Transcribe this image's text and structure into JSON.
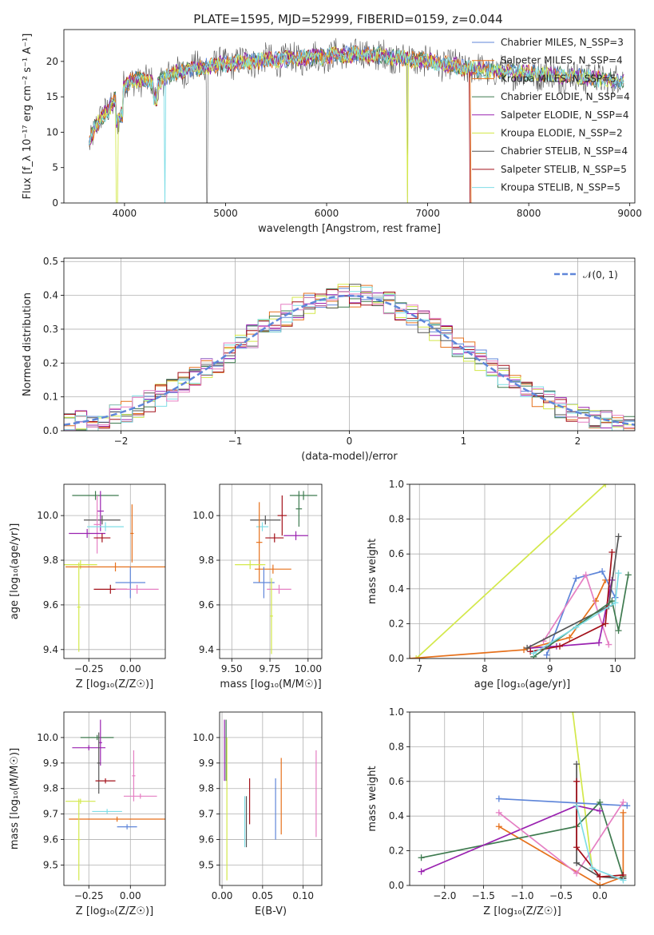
{
  "title": "PLATE=1595, MJD=52999, FIBERID=0159, z=0.044",
  "colors": {
    "chabrier_miles": "#5f86d9",
    "salpeter_miles": "#e6711c",
    "kroupa_miles": "#e6711c",
    "chabrier_elodie": "#3e7a4f",
    "salpeter_elodie": "#9a22b0",
    "kroupa_elodie": "#d3e84a",
    "chabrier_stelib": "#555555",
    "salpeter_stelib": "#a3111a",
    "kroupa_stelib": "#7fdde6",
    "pink": "#e57fc3",
    "gauss": "#5f86d9",
    "grid": "#b0b0b0"
  },
  "chart_data": [
    {
      "id": "spectrum",
      "type": "line",
      "title": "PLATE=1595, MJD=52999, FIBERID=0159, z=0.044",
      "xlabel": "wavelength [Angstrom, rest frame]",
      "ylabel": "Flux [f_λ 10⁻¹⁷ erg cm⁻² s⁻¹ A⁻¹]",
      "xlim": [
        3400,
        9050
      ],
      "ylim": [
        0,
        24.5
      ],
      "xticks": [
        "4000",
        "5000",
        "6000",
        "7000",
        "8000",
        "9000"
      ],
      "yticks": [
        "0",
        "5",
        "10",
        "15",
        "20"
      ],
      "legend_position": "right",
      "legend": [
        "Chabrier MILES, N_SSP=3",
        "Salpeter MILES, N_SSP=4",
        "Kroupa MILES, N_SSP=5",
        "Chabrier ELODIE, N_SSP=4",
        "Salpeter ELODIE, N_SSP=4",
        "Kroupa ELODIE, N_SSP=2",
        "Chabrier STELIB, N_SSP=4",
        "Salpeter STELIB, N_SSP=5",
        "Kroupa STELIB, N_SSP=5"
      ],
      "continuum": [
        [
          3650,
          8.5
        ],
        [
          3700,
          10.5
        ],
        [
          3800,
          12.5
        ],
        [
          3900,
          14.5
        ],
        [
          4000,
          16.5
        ],
        [
          4100,
          17.5
        ],
        [
          4300,
          16.8
        ],
        [
          4500,
          18.5
        ],
        [
          4700,
          19.0
        ],
        [
          4900,
          19.5
        ],
        [
          5200,
          20.0
        ],
        [
          5600,
          20.3
        ],
        [
          6000,
          20.8
        ],
        [
          6300,
          21.0
        ],
        [
          6600,
          20.7
        ],
        [
          7000,
          20.0
        ],
        [
          7500,
          18.8
        ],
        [
          8000,
          18.3
        ],
        [
          8500,
          17.8
        ],
        [
          8950,
          17.2
        ]
      ]
    },
    {
      "id": "residual-histogram",
      "type": "histogram",
      "xlabel": "(data-model)/error",
      "ylabel": "Normed distribution",
      "xlim": [
        -2.5,
        2.5
      ],
      "ylim": [
        0,
        0.51
      ],
      "xticks": [
        "−2",
        "−1",
        "0",
        "1",
        "2"
      ],
      "yticks": [
        "0.0",
        "0.1",
        "0.2",
        "0.3",
        "0.4",
        "0.5"
      ],
      "legend": [
        "𝒩(0, 1)"
      ],
      "bin_width": 0.1
    },
    {
      "id": "age-vs-z",
      "type": "scatter",
      "xlabel": "Z [log₁₀(Z/Z☉)]",
      "ylabel": "age  [log₁₀(age/yr)]",
      "xlim": [
        -0.4,
        0.21
      ],
      "ylim": [
        9.36,
        10.14
      ],
      "xticks": [
        "−0.25",
        "0.00"
      ],
      "yticks": [
        "9.4",
        "9.6",
        "9.8",
        "10.0"
      ],
      "points": [
        {
          "x": -0.21,
          "y": 10.09,
          "x_err": 0.14,
          "y_err": 0.02,
          "color": "chabrier_elodie"
        },
        {
          "x": -0.18,
          "y": 10.02,
          "x_err": 0.02,
          "y_err": 0.09,
          "color": "salpeter_elodie"
        },
        {
          "x": -0.17,
          "y": 9.98,
          "x_err": 0.11,
          "y_err": 0.02,
          "color": "chabrier_stelib"
        },
        {
          "x": -0.2,
          "y": 9.96,
          "x_err": 0.02,
          "y_err": 0.13,
          "color": "pink"
        },
        {
          "x": -0.15,
          "y": 9.95,
          "x_err": 0.11,
          "y_err": 0.02,
          "color": "kroupa_stelib"
        },
        {
          "x": -0.26,
          "y": 9.92,
          "x_err": 0.11,
          "y_err": 0.02,
          "color": "salpeter_elodie"
        },
        {
          "x": 0.01,
          "y": 9.92,
          "x_err": 0.01,
          "y_err": 0.13,
          "color": "salpeter_miles"
        },
        {
          "x": -0.17,
          "y": 9.9,
          "x_err": 0.05,
          "y_err": 0.02,
          "color": "salpeter_stelib"
        },
        {
          "x": -0.3,
          "y": 9.78,
          "x_err": 0.1,
          "y_err": 0.02,
          "color": "kroupa_elodie"
        },
        {
          "x": -0.09,
          "y": 9.77,
          "x_err": 0.3,
          "y_err": 0.02,
          "color": "salpeter_miles"
        },
        {
          "x": 0.0,
          "y": 9.7,
          "x_err": 0.09,
          "y_err": 0.07,
          "color": "chabrier_miles"
        },
        {
          "x": -0.12,
          "y": 9.67,
          "x_err": 0.1,
          "y_err": 0.02,
          "color": "salpeter_stelib"
        },
        {
          "x": 0.04,
          "y": 9.67,
          "x_err": 0.13,
          "y_err": 0.02,
          "color": "pink"
        },
        {
          "x": -0.31,
          "y": 9.59,
          "x_err": 0.01,
          "y_err": 0.2,
          "color": "kroupa_elodie"
        }
      ]
    },
    {
      "id": "age-vs-mass",
      "type": "scatter",
      "xlabel": "mass [log₁₀(M/M☉)]",
      "ylabel": "",
      "xlim": [
        9.42,
        10.09
      ],
      "ylim": [
        9.36,
        10.14
      ],
      "xticks": [
        "9.50",
        "9.75",
        "10.00"
      ],
      "yticks": [
        "9.4",
        "9.6",
        "9.8",
        "10.0"
      ],
      "points": [
        {
          "x": 9.97,
          "y": 10.09,
          "x_err": 0.09,
          "y_err": 0.02,
          "color": "chabrier_elodie"
        },
        {
          "x": 9.94,
          "y": 10.03,
          "x_err": 0.02,
          "y_err": 0.08,
          "color": "chabrier_elodie"
        },
        {
          "x": 9.83,
          "y": 10.0,
          "x_err": 0.03,
          "y_err": 0.09,
          "color": "salpeter_stelib"
        },
        {
          "x": 9.72,
          "y": 9.98,
          "x_err": 0.1,
          "y_err": 0.02,
          "color": "chabrier_stelib"
        },
        {
          "x": 9.92,
          "y": 9.91,
          "x_err": 0.08,
          "y_err": 0.02,
          "color": "salpeter_elodie"
        },
        {
          "x": 9.7,
          "y": 9.95,
          "x_err": 0.04,
          "y_err": 0.02,
          "color": "kroupa_stelib"
        },
        {
          "x": 9.78,
          "y": 9.9,
          "x_err": 0.06,
          "y_err": 0.02,
          "color": "salpeter_stelib"
        },
        {
          "x": 9.68,
          "y": 9.88,
          "x_err": 0.02,
          "y_err": 0.18,
          "color": "salpeter_miles"
        },
        {
          "x": 9.62,
          "y": 9.78,
          "x_err": 0.1,
          "y_err": 0.02,
          "color": "kroupa_elodie"
        },
        {
          "x": 9.77,
          "y": 9.76,
          "x_err": 0.12,
          "y_err": 0.02,
          "color": "salpeter_miles"
        },
        {
          "x": 9.71,
          "y": 9.7,
          "x_err": 0.07,
          "y_err": 0.07,
          "color": "chabrier_miles"
        },
        {
          "x": 9.81,
          "y": 9.67,
          "x_err": 0.08,
          "y_err": 0.02,
          "color": "pink"
        },
        {
          "x": 9.76,
          "y": 9.55,
          "x_err": 0.01,
          "y_err": 0.17,
          "color": "kroupa_elodie"
        }
      ]
    },
    {
      "id": "mass-weight-vs-age",
      "type": "line",
      "xlabel": "age  [log₁₀(age/yr)]",
      "ylabel": "mass weight",
      "xlim": [
        6.85,
        10.3
      ],
      "ylim": [
        0,
        1.0
      ],
      "xticks": [
        "7",
        "8",
        "9",
        "10"
      ],
      "yticks": [
        "0.0",
        "0.2",
        "0.4",
        "0.6",
        "0.8",
        "1.0"
      ],
      "series": [
        {
          "color": "kroupa_elodie",
          "x": [
            6.95,
            9.85
          ],
          "y": [
            0.0,
            1.0
          ]
        },
        {
          "color": "salpeter_miles",
          "x": [
            6.85,
            8.6,
            9.3,
            9.7,
            9.85
          ],
          "y": [
            0.0,
            0.05,
            0.12,
            0.33,
            0.45
          ]
        },
        {
          "color": "chabrier_miles",
          "x": [
            8.95,
            9.4,
            9.8,
            10.0
          ],
          "y": [
            0.02,
            0.46,
            0.5,
            0.35
          ]
        },
        {
          "color": "pink",
          "x": [
            8.9,
            9.55,
            9.9
          ],
          "y": [
            0.1,
            0.48,
            0.08
          ]
        },
        {
          "color": "salpeter_elodie",
          "x": [
            8.7,
            9.1,
            9.75,
            9.95
          ],
          "y": [
            0.06,
            0.07,
            0.09,
            0.45
          ]
        },
        {
          "color": "chabrier_stelib",
          "x": [
            8.65,
            9.9,
            10.05
          ],
          "y": [
            0.06,
            0.3,
            0.7
          ]
        },
        {
          "color": "salpeter_stelib",
          "x": [
            8.7,
            9.15,
            9.85,
            9.95
          ],
          "y": [
            0.04,
            0.07,
            0.2,
            0.61
          ]
        },
        {
          "color": "chabrier_elodie",
          "x": [
            8.75,
            9.95,
            10.05,
            10.2
          ],
          "y": [
            0.01,
            0.33,
            0.16,
            0.48
          ]
        },
        {
          "color": "kroupa_stelib",
          "x": [
            8.75,
            9.4,
            10.0,
            10.05
          ],
          "y": [
            0.03,
            0.18,
            0.32,
            0.49
          ]
        }
      ]
    },
    {
      "id": "mass-vs-z",
      "type": "scatter",
      "xlabel": "Z [log₁₀(Z/Z☉)]",
      "ylabel": "mass [log₁₀(M/M☉)]",
      "xlim": [
        -0.4,
        0.21
      ],
      "ylim": [
        9.42,
        10.1
      ],
      "xticks": [
        "−0.25",
        "0.00"
      ],
      "yticks": [
        "9.5",
        "9.6",
        "9.7",
        "9.8",
        "9.9",
        "10.0"
      ],
      "points": [
        {
          "x": -0.2,
          "y": 10.0,
          "x_err": 0.1,
          "y_err": 0.01,
          "color": "chabrier_elodie"
        },
        {
          "x": -0.18,
          "y": 9.98,
          "x_err": 0.01,
          "y_err": 0.09,
          "color": "salpeter_elodie"
        },
        {
          "x": -0.25,
          "y": 9.96,
          "x_err": 0.1,
          "y_err": 0.01,
          "color": "salpeter_elodie"
        },
        {
          "x": -0.19,
          "y": 9.9,
          "x_err": 0.01,
          "y_err": 0.12,
          "color": "chabrier_stelib"
        },
        {
          "x": -0.15,
          "y": 9.83,
          "x_err": 0.06,
          "y_err": 0.01,
          "color": "salpeter_stelib"
        },
        {
          "x": 0.02,
          "y": 9.85,
          "x_err": 0.01,
          "y_err": 0.1,
          "color": "pink"
        },
        {
          "x": 0.06,
          "y": 9.77,
          "x_err": 0.1,
          "y_err": 0.01,
          "color": "pink"
        },
        {
          "x": -0.3,
          "y": 9.75,
          "x_err": 0.09,
          "y_err": 0.01,
          "color": "kroupa_elodie"
        },
        {
          "x": -0.14,
          "y": 9.71,
          "x_err": 0.09,
          "y_err": 0.01,
          "color": "kroupa_stelib"
        },
        {
          "x": -0.08,
          "y": 9.68,
          "x_err": 0.29,
          "y_err": 0.01,
          "color": "salpeter_miles"
        },
        {
          "x": -0.02,
          "y": 9.65,
          "x_err": 0.06,
          "y_err": 0.01,
          "color": "chabrier_miles"
        },
        {
          "x": -0.31,
          "y": 9.6,
          "x_err": 0.01,
          "y_err": 0.16,
          "color": "kroupa_elodie"
        }
      ]
    },
    {
      "id": "mass-vs-ebv",
      "type": "scatter",
      "xlabel": "E(B-V)",
      "ylabel": "",
      "xlim": [
        -0.003,
        0.123
      ],
      "ylim": [
        9.42,
        10.1
      ],
      "xticks": [
        "0.00",
        "0.05",
        "0.10"
      ],
      "yticks": [
        "9.5",
        "9.6",
        "9.7",
        "9.8",
        "9.9",
        "10.0"
      ],
      "points": [
        {
          "x": 0.003,
          "y": 9.95,
          "y_err": 0.12,
          "color": "salpeter_elodie"
        },
        {
          "x": 0.005,
          "y": 9.95,
          "y_err": 0.12,
          "color": "chabrier_elodie"
        },
        {
          "x": 0.006,
          "y": 9.72,
          "y_err": 0.28,
          "color": "kroupa_elodie"
        },
        {
          "x": 0.028,
          "y": 9.67,
          "y_err": 0.1,
          "color": "kroupa_stelib"
        },
        {
          "x": 0.03,
          "y": 9.67,
          "y_err": 0.1,
          "color": "chabrier_stelib"
        },
        {
          "x": 0.034,
          "y": 9.75,
          "y_err": 0.09,
          "color": "salpeter_stelib"
        },
        {
          "x": 0.066,
          "y": 9.72,
          "y_err": 0.12,
          "color": "chabrier_miles"
        },
        {
          "x": 0.073,
          "y": 9.77,
          "y_err": 0.15,
          "color": "salpeter_miles"
        },
        {
          "x": 0.116,
          "y": 9.78,
          "y_err": 0.17,
          "color": "pink"
        }
      ]
    },
    {
      "id": "mass-weight-vs-z",
      "type": "line",
      "xlabel": "Z [log₁₀(Z/Z☉)]",
      "ylabel": "mass weight",
      "xlim": [
        -2.45,
        0.45
      ],
      "ylim": [
        0,
        1.0
      ],
      "xticks": [
        "−2.0",
        "−1.5",
        "−1.0",
        "−0.5",
        "0.0"
      ],
      "yticks": [
        "0.0",
        "0.2",
        "0.4",
        "0.6",
        "0.8",
        "1.0"
      ],
      "series": [
        {
          "color": "kroupa_elodie",
          "x": [
            -0.35,
            -0.1
          ],
          "y": [
            1.0,
            0.1
          ]
        },
        {
          "color": "chabrier_miles",
          "x": [
            -1.3,
            0.35
          ],
          "y": [
            0.5,
            0.46
          ]
        },
        {
          "color": "salpeter_miles",
          "x": [
            -1.3,
            0.0,
            0.3,
            0.3
          ],
          "y": [
            0.34,
            0.0,
            0.05,
            0.42
          ]
        },
        {
          "color": "chabrier_elodie",
          "x": [
            -2.3,
            -0.3,
            0.0,
            0.3
          ],
          "y": [
            0.16,
            0.34,
            0.48,
            0.05
          ]
        },
        {
          "color": "salpeter_elodie",
          "x": [
            -2.3,
            -0.3,
            0.0
          ],
          "y": [
            0.08,
            0.46,
            0.43
          ]
        },
        {
          "color": "pink",
          "x": [
            -1.3,
            -0.3,
            0.3
          ],
          "y": [
            0.42,
            0.07,
            0.48
          ]
        },
        {
          "color": "chabrier_stelib",
          "x": [
            -0.3,
            -0.3,
            0.0,
            0.3
          ],
          "y": [
            0.7,
            0.13,
            0.05,
            0.04
          ]
        },
        {
          "color": "salpeter_stelib",
          "x": [
            -0.3,
            -0.3,
            0.0,
            0.3
          ],
          "y": [
            0.6,
            0.22,
            0.05,
            0.06
          ]
        },
        {
          "color": "kroupa_stelib",
          "x": [
            -0.3,
            -0.1,
            0.3
          ],
          "y": [
            0.46,
            0.1,
            0.03
          ]
        }
      ]
    }
  ]
}
